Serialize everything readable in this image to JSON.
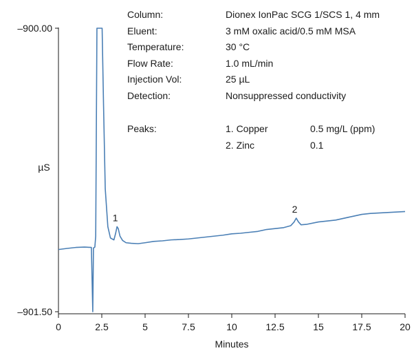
{
  "info_panel": {
    "rows": [
      {
        "label": "Column:",
        "value": "Dionex IonPac SCG 1/SCS 1, 4 mm"
      },
      {
        "label": "Eluent:",
        "value": "3 mM oxalic acid/0.5 mM MSA"
      },
      {
        "label": "Temperature:",
        "value": "30 °C"
      },
      {
        "label": "Flow Rate:",
        "value": "1.0 mL/min"
      },
      {
        "label": "Injection Vol:",
        "value": "25 µL"
      },
      {
        "label": "Detection:",
        "value": "Nonsuppressed conductivity"
      }
    ],
    "peaks_label": "Peaks:",
    "peaks": [
      {
        "name": "1. Copper",
        "amount": "0.5 mg/L (ppm)"
      },
      {
        "name": "2. Zinc",
        "amount": "0.1"
      }
    ]
  },
  "chart_data": {
    "type": "line",
    "xlabel": "Minutes",
    "ylabel": "µS",
    "xlim": [
      0,
      20
    ],
    "ylim": [
      -901.5,
      -900.0
    ],
    "x_ticks": [
      "0",
      "2.5",
      "5",
      "7.5",
      "10",
      "12.5",
      "15",
      "17.5",
      "20"
    ],
    "y_ticks": [
      "–900.00",
      "–901.50"
    ],
    "line_color": "#4a7fb5",
    "grid": false,
    "series": [
      {
        "x": [
          0.0,
          0.5,
          1.0,
          1.5,
          1.9,
          1.98,
          2.02,
          2.1,
          2.15,
          2.22,
          2.3,
          2.38,
          2.45,
          2.52,
          2.6,
          2.7,
          2.85,
          3.0,
          3.2,
          3.3,
          3.38,
          3.45,
          3.55,
          3.7,
          3.9,
          4.2,
          4.6,
          5.0,
          5.5,
          6.0,
          6.5,
          7.0,
          7.5,
          8.0,
          8.5,
          9.0,
          9.5,
          10.0,
          10.5,
          11.0,
          11.5,
          12.0,
          12.5,
          13.0,
          13.4,
          13.6,
          13.72,
          13.85,
          14.0,
          14.3,
          15.0,
          16.0,
          17.0,
          17.5,
          18.0,
          19.0,
          20.0
        ],
        "y": [
          -901.171,
          -901.165,
          -901.16,
          -901.158,
          -901.16,
          -901.5,
          -901.163,
          -901.158,
          -901.1,
          -900.0,
          -900.0,
          -900.0,
          -900.0,
          -900.0,
          -900.4,
          -900.85,
          -901.05,
          -901.11,
          -901.12,
          -901.085,
          -901.05,
          -901.06,
          -901.1,
          -901.123,
          -901.135,
          -901.138,
          -901.14,
          -901.135,
          -901.128,
          -901.125,
          -901.12,
          -901.118,
          -901.115,
          -901.11,
          -901.105,
          -901.1,
          -901.095,
          -901.088,
          -901.085,
          -901.08,
          -901.075,
          -901.065,
          -901.06,
          -901.055,
          -901.045,
          -901.025,
          -901.005,
          -901.025,
          -901.04,
          -901.038,
          -901.025,
          -901.015,
          -900.995,
          -900.985,
          -900.98,
          -900.975,
          -900.97
        ]
      }
    ],
    "annotations": [
      {
        "text": "1",
        "x": 3.4,
        "y": -901.05
      },
      {
        "text": "2",
        "x": 13.75,
        "y": -901.005
      }
    ]
  }
}
